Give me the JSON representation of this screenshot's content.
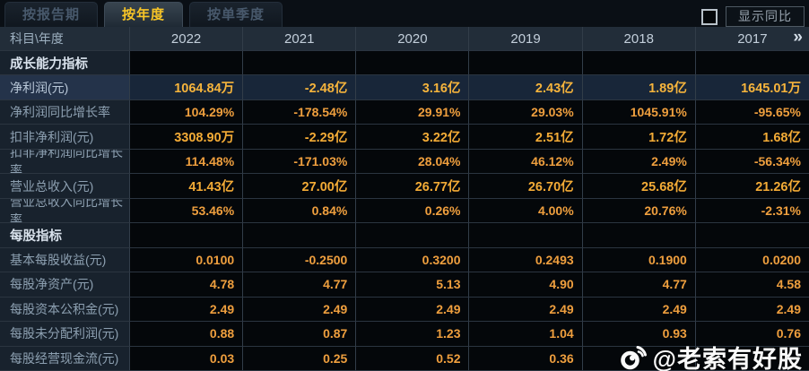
{
  "tabs": [
    {
      "label": "按报告期",
      "active": false
    },
    {
      "label": "按年度",
      "active": true
    },
    {
      "label": "按单季度",
      "active": false
    }
  ],
  "controls": {
    "show_yoy_label": "显示同比",
    "checkbox_checked": false
  },
  "table": {
    "corner_label": "科目\\年度",
    "years": [
      "2022",
      "2021",
      "2020",
      "2019",
      "2018",
      "2017"
    ],
    "more_icon": "»",
    "rows": [
      {
        "type": "section",
        "label": "成长能力指标"
      },
      {
        "type": "data",
        "label": "净利润(元)",
        "highlight": true,
        "bold": true,
        "values": [
          "1064.84万",
          "-2.48亿",
          "3.16亿",
          "2.43亿",
          "1.89亿",
          "1645.01万"
        ]
      },
      {
        "type": "data",
        "label": "净利润同比增长率",
        "values": [
          "104.29%",
          "-178.54%",
          "29.91%",
          "29.03%",
          "1045.91%",
          "-95.65%"
        ]
      },
      {
        "type": "data",
        "label": "扣非净利润(元)",
        "bold": true,
        "values": [
          "3308.90万",
          "-2.29亿",
          "3.22亿",
          "2.51亿",
          "1.72亿",
          "1.68亿"
        ]
      },
      {
        "type": "data",
        "label": "扣非净利润同比增长率",
        "values": [
          "114.48%",
          "-171.03%",
          "28.04%",
          "46.12%",
          "2.49%",
          "-56.34%"
        ]
      },
      {
        "type": "data",
        "label": "营业总收入(元)",
        "bold": true,
        "values": [
          "41.43亿",
          "27.00亿",
          "26.77亿",
          "26.70亿",
          "25.68亿",
          "21.26亿"
        ]
      },
      {
        "type": "data",
        "label": "营业总收入同比增长率",
        "values": [
          "53.46%",
          "0.84%",
          "0.26%",
          "4.00%",
          "20.76%",
          "-2.31%"
        ]
      },
      {
        "type": "section",
        "label": "每股指标"
      },
      {
        "type": "data",
        "label": "基本每股收益(元)",
        "values": [
          "0.0100",
          "-0.2500",
          "0.3200",
          "0.2493",
          "0.1900",
          "0.0200"
        ]
      },
      {
        "type": "data",
        "label": "每股净资产(元)",
        "values": [
          "4.78",
          "4.77",
          "5.13",
          "4.90",
          "4.77",
          "4.58"
        ]
      },
      {
        "type": "data",
        "label": "每股资本公积金(元)",
        "values": [
          "2.49",
          "2.49",
          "2.49",
          "2.49",
          "2.49",
          "2.49"
        ]
      },
      {
        "type": "data",
        "label": "每股未分配利润(元)",
        "values": [
          "0.88",
          "0.87",
          "1.23",
          "1.04",
          "0.93",
          "0.76"
        ]
      },
      {
        "type": "data",
        "label": "每股经营现金流(元)",
        "values": [
          "0.03",
          "0.25",
          "0.52",
          "0.36",
          "",
          ""
        ]
      }
    ]
  },
  "watermark": {
    "icon": "weibo-icon",
    "text": "@老索有好股"
  },
  "colors": {
    "tab_accent": "#f8c527",
    "value_orange": "#ef9f3e",
    "value_bold_gold": "#f3ab36",
    "highlight_row_bg": "#182639",
    "label_col_bg": "#18222d",
    "header_bg": "#222d39",
    "watermark_white": "#fafafa"
  }
}
